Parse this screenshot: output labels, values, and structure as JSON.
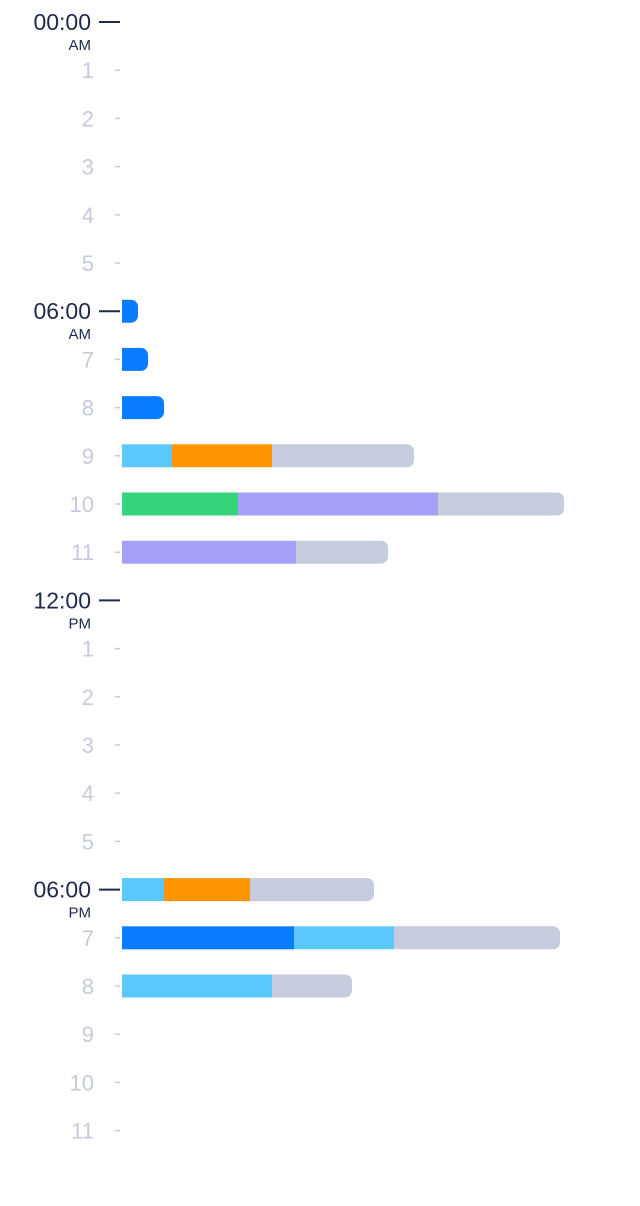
{
  "chart_data": {
    "type": "bar",
    "orientation": "horizontal",
    "stacked": true,
    "hours": [
      {
        "label": "00:00",
        "suffix": "AM",
        "major": true,
        "segments": []
      },
      {
        "label": "1",
        "major": false,
        "segments": []
      },
      {
        "label": "2",
        "major": false,
        "segments": []
      },
      {
        "label": "3",
        "major": false,
        "segments": []
      },
      {
        "label": "4",
        "major": false,
        "segments": []
      },
      {
        "label": "5",
        "major": false,
        "segments": []
      },
      {
        "label": "06:00",
        "suffix": "AM",
        "major": true,
        "segments": [
          {
            "color": "blue",
            "value": 8
          }
        ]
      },
      {
        "label": "7",
        "major": false,
        "segments": [
          {
            "color": "blue",
            "value": 13
          }
        ]
      },
      {
        "label": "8",
        "major": false,
        "segments": [
          {
            "color": "blue",
            "value": 21
          }
        ]
      },
      {
        "label": "9",
        "major": false,
        "segments": [
          {
            "color": "cyan",
            "value": 25
          },
          {
            "color": "orange",
            "value": 50
          },
          {
            "color": "gray",
            "value": 71
          }
        ]
      },
      {
        "label": "10",
        "major": false,
        "segments": [
          {
            "color": "green",
            "value": 58
          },
          {
            "color": "purple",
            "value": 100
          },
          {
            "color": "gray",
            "value": 63
          }
        ]
      },
      {
        "label": "11",
        "major": false,
        "segments": [
          {
            "color": "purple",
            "value": 87
          },
          {
            "color": "gray",
            "value": 46
          }
        ]
      },
      {
        "label": "12:00",
        "suffix": "PM",
        "major": true,
        "segments": []
      },
      {
        "label": "1",
        "major": false,
        "segments": []
      },
      {
        "label": "2",
        "major": false,
        "segments": []
      },
      {
        "label": "3",
        "major": false,
        "segments": []
      },
      {
        "label": "4",
        "major": false,
        "segments": []
      },
      {
        "label": "5",
        "major": false,
        "segments": []
      },
      {
        "label": "06:00",
        "suffix": "PM",
        "major": true,
        "segments": [
          {
            "color": "cyan",
            "value": 21
          },
          {
            "color": "orange",
            "value": 43
          },
          {
            "color": "gray",
            "value": 62
          }
        ]
      },
      {
        "label": "7",
        "major": false,
        "segments": [
          {
            "color": "blue",
            "value": 86
          },
          {
            "color": "cyan",
            "value": 50
          },
          {
            "color": "gray",
            "value": 83
          }
        ]
      },
      {
        "label": "8",
        "major": false,
        "segments": [
          {
            "color": "cyan",
            "value": 75
          },
          {
            "color": "gray",
            "value": 40
          }
        ]
      },
      {
        "label": "9",
        "major": false,
        "segments": []
      },
      {
        "label": "10",
        "major": false,
        "segments": []
      },
      {
        "label": "11",
        "major": false,
        "segments": []
      }
    ],
    "colors": {
      "blue": "#0a7cff",
      "cyan": "#5ac8fa",
      "orange": "#ff9500",
      "green": "#34d57a",
      "purple": "#a59ff7",
      "gray": "#c6cbdd"
    },
    "grid": false
  }
}
